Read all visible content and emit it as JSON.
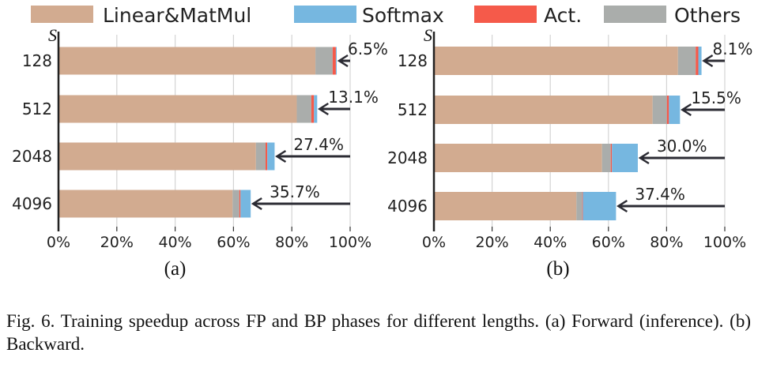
{
  "legend": [
    {
      "label": "Linear&MatMul",
      "color": "#D2AB90"
    },
    {
      "label": "Softmax",
      "color": "#76B7E0"
    },
    {
      "label": "Act.",
      "color": "#F55A4A"
    },
    {
      "label": "Others",
      "color": "#AAADAB"
    }
  ],
  "caption": "Fig. 6.  Training speedup across FP and BP phases for different lengths. (a) Forward (inference). (b) Backward.",
  "chart_data": [
    {
      "type": "bar",
      "orientation": "horizontal-stacked",
      "title": "(a)",
      "ylabel": "S",
      "categories": [
        "128",
        "512",
        "2048",
        "4096"
      ],
      "xticks": [
        "0%",
        "20%",
        "40%",
        "60%",
        "80%",
        "100%"
      ],
      "xlim": [
        0,
        100
      ],
      "series": [
        {
          "name": "Linear&MatMul",
          "values": [
            88.1,
            81.7,
            67.7,
            59.7
          ]
        },
        {
          "name": "Others",
          "values": [
            5.9,
            5.0,
            3.3,
            2.3
          ]
        },
        {
          "name": "Act.",
          "values": [
            1.1,
            0.9,
            0.6,
            0.4
          ]
        },
        {
          "name": "Softmax",
          "values": [
            0.3,
            1.1,
            2.5,
            3.5
          ]
        }
      ],
      "annotations": [
        "6.5%",
        "13.1%",
        "27.4%",
        "35.7%"
      ]
    },
    {
      "type": "bar",
      "orientation": "horizontal-stacked",
      "title": "(b)",
      "ylabel": "S",
      "categories": [
        "128",
        "512",
        "2048",
        "4096"
      ],
      "xticks": [
        "0%",
        "20%",
        "40%",
        "60%",
        "80%",
        "100%"
      ],
      "xlim": [
        0,
        100
      ],
      "series": [
        {
          "name": "Linear&MatMul",
          "values": [
            83.9,
            75.2,
            57.8,
            49.0
          ]
        },
        {
          "name": "Others",
          "values": [
            6.1,
            4.9,
            3.0,
            2.0
          ]
        },
        {
          "name": "Act.",
          "values": [
            0.9,
            0.7,
            0.4,
            0.2
          ]
        },
        {
          "name": "Softmax",
          "values": [
            1.1,
            3.8,
            8.9,
            11.4
          ]
        }
      ],
      "annotations": [
        "8.1%",
        "15.5%",
        "30.0%",
        "37.4%"
      ]
    }
  ]
}
